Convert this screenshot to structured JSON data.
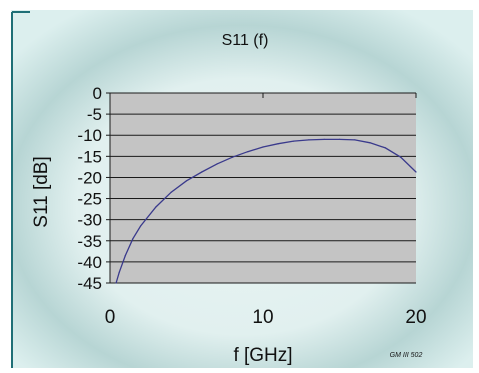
{
  "chart_data": {
    "type": "line",
    "title": "S11 (f)",
    "xlabel": "f [GHz]",
    "ylabel": "S11 [dB]",
    "xlim": [
      0,
      20
    ],
    "ylim": [
      -45,
      0
    ],
    "x_ticks": [
      "0",
      "10",
      "20"
    ],
    "y_ticks": [
      "0",
      "-5",
      "-10",
      "-15",
      "-20",
      "-25",
      "-30",
      "-35",
      "-40",
      "-45"
    ],
    "grid": "horizontal",
    "legend": "none",
    "watermark": "GM III 502",
    "colors": {
      "series": "#3a3a8c",
      "plot_area": "#c4c4c4",
      "frame_bg": "#e2f1f0",
      "frame_accent": "#1f6f76"
    },
    "series": [
      {
        "x": [
          0.4,
          0.6,
          1,
          1.5,
          2,
          3,
          4,
          5,
          6,
          7,
          8,
          9,
          10,
          11,
          12,
          13,
          14,
          15,
          16,
          17,
          18,
          19,
          20
        ],
        "y": [
          -45,
          -42.5,
          -38.5,
          -34.5,
          -31.5,
          -27,
          -23.5,
          -20.8,
          -18.7,
          -16.8,
          -15.2,
          -13.9,
          -12.8,
          -12,
          -11.4,
          -11.1,
          -11,
          -11,
          -11.1,
          -11.8,
          -13,
          -15.2,
          -18.7
        ]
      }
    ]
  }
}
